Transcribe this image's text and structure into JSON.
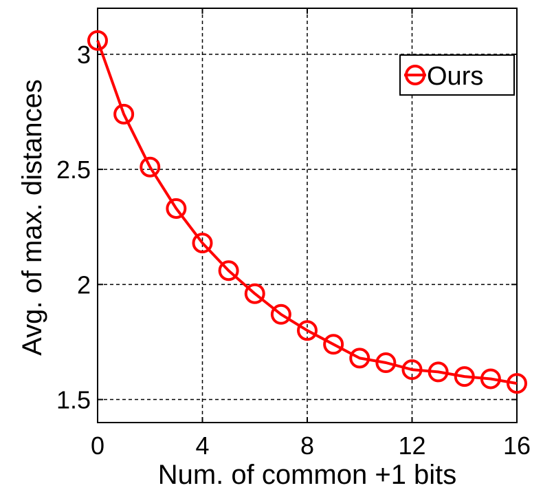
{
  "chart_data": {
    "type": "line",
    "xlabel": "Num. of common +1 bits",
    "ylabel": "Avg. of max. distances",
    "xlim": [
      0,
      16
    ],
    "ylim": [
      1.4,
      3.2
    ],
    "xticks": [
      0,
      4,
      8,
      12,
      16
    ],
    "xtick_labels": [
      "0",
      "4",
      "8",
      "12",
      "16"
    ],
    "yticks": [
      1.5,
      2,
      2.5,
      3
    ],
    "ytick_labels": [
      "1.5",
      "2",
      "2.5",
      "3"
    ],
    "grid": true,
    "legend_position": "top-right",
    "series": [
      {
        "name": "Ours",
        "color": "#ff0000",
        "marker": "circle",
        "x": [
          0,
          1,
          2,
          3,
          4,
          5,
          6,
          7,
          8,
          9,
          10,
          11,
          12,
          13,
          14,
          15,
          16
        ],
        "y": [
          3.06,
          2.74,
          2.51,
          2.33,
          2.18,
          2.06,
          1.96,
          1.87,
          1.8,
          1.74,
          1.68,
          1.66,
          1.63,
          1.62,
          1.6,
          1.59,
          1.57
        ]
      }
    ]
  }
}
